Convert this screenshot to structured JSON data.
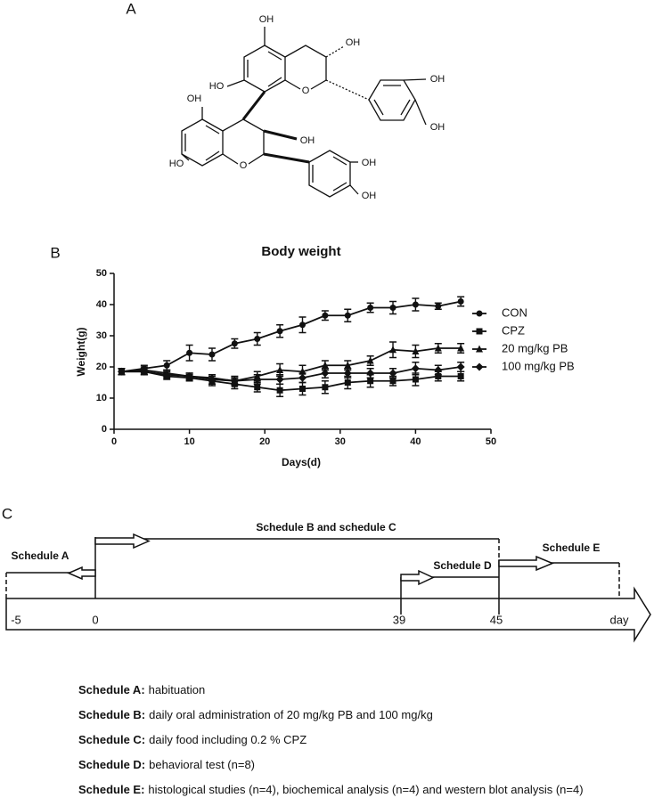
{
  "panel_labels": [
    "A",
    "B",
    "C"
  ],
  "molecule": {
    "labels": [
      "OH",
      "OH",
      "OH",
      "OH",
      "HO",
      "O",
      "OH",
      "HO",
      "OH",
      "O",
      "OH",
      "OH"
    ]
  },
  "chart_data": {
    "type": "line",
    "title": "Body weight",
    "x_label": "Days(d)",
    "y_label": "Weight(g)",
    "x": [
      1,
      4,
      7,
      10,
      13,
      16,
      19,
      22,
      25,
      28,
      31,
      34,
      37,
      40,
      43,
      46
    ],
    "series": [
      {
        "name": "CON",
        "color": "#111111",
        "marker": "circle",
        "values": [
          18.5,
          19.5,
          20.5,
          24.5,
          24,
          27.5,
          29,
          31.5,
          33.5,
          36.5,
          36.5,
          39,
          39,
          40,
          39.5,
          41
        ],
        "errors": [
          1,
          1,
          1.5,
          2.5,
          2,
          1.5,
          2,
          2,
          2.5,
          1.5,
          2,
          1.5,
          2,
          2,
          1,
          1.5
        ]
      },
      {
        "name": "CPZ",
        "color": "#111111",
        "marker": "square",
        "values": [
          18.5,
          18.5,
          17,
          16.5,
          15.5,
          14.5,
          13.5,
          12.5,
          13,
          13.5,
          15,
          15.5,
          15.5,
          16,
          17,
          17
        ],
        "errors": [
          1,
          1,
          1,
          1,
          1.5,
          1.5,
          1.5,
          2,
          2,
          2,
          2,
          2,
          1.5,
          2,
          1.5,
          1.5
        ]
      },
      {
        "name": "20 mg/kg PB",
        "color": "#111111",
        "marker": "triangle",
        "values": [
          18.5,
          19,
          18,
          17,
          16.5,
          15.5,
          17,
          19,
          18.5,
          20.5,
          20.5,
          22,
          25.5,
          25,
          26,
          26
        ],
        "errors": [
          1,
          1,
          1,
          1,
          1,
          1,
          1.5,
          2,
          2,
          1.5,
          1.5,
          1.5,
          2.5,
          2,
          1.5,
          1.5
        ]
      },
      {
        "name": "100 mg/kg PB",
        "color": "#111111",
        "marker": "diamond",
        "values": [
          18.5,
          18.5,
          17.5,
          17,
          16,
          15.5,
          16,
          16,
          16.5,
          18,
          18,
          18,
          18,
          19.5,
          19,
          20
        ],
        "errors": [
          1,
          1,
          1,
          1,
          1.5,
          1.5,
          1.5,
          1.5,
          1.5,
          1.5,
          1.5,
          1.5,
          1.5,
          2,
          1.5,
          1.5
        ]
      }
    ],
    "xlim": [
      0,
      50
    ],
    "xticks": [
      0,
      10,
      20,
      30,
      40,
      50
    ],
    "ylim": [
      0,
      50
    ],
    "yticks": [
      0,
      10,
      20,
      30,
      40,
      50
    ],
    "grid": false,
    "legend": "right"
  },
  "timeline": {
    "ticks": [
      "-5",
      "0",
      "39",
      "45"
    ],
    "end_label": "day",
    "schedules": [
      "Schedule A",
      "Schedule B and schedule C",
      "Schedule D",
      "Schedule E"
    ]
  },
  "descriptions": [
    {
      "label": "Schedule A:",
      "text": "habituation"
    },
    {
      "label": "Schedule B:",
      "text": "daily oral administration of 20 mg/kg PB and 100 mg/kg"
    },
    {
      "label": "Schedule C:",
      "text": "daily food including 0.2 % CPZ"
    },
    {
      "label": "Schedule D:",
      "text": "behavioral test (n=8)"
    },
    {
      "label": "Schedule E:",
      "text": "histological studies (n=4), biochemical analysis (n=4) and western blot analysis (n=4)"
    }
  ]
}
